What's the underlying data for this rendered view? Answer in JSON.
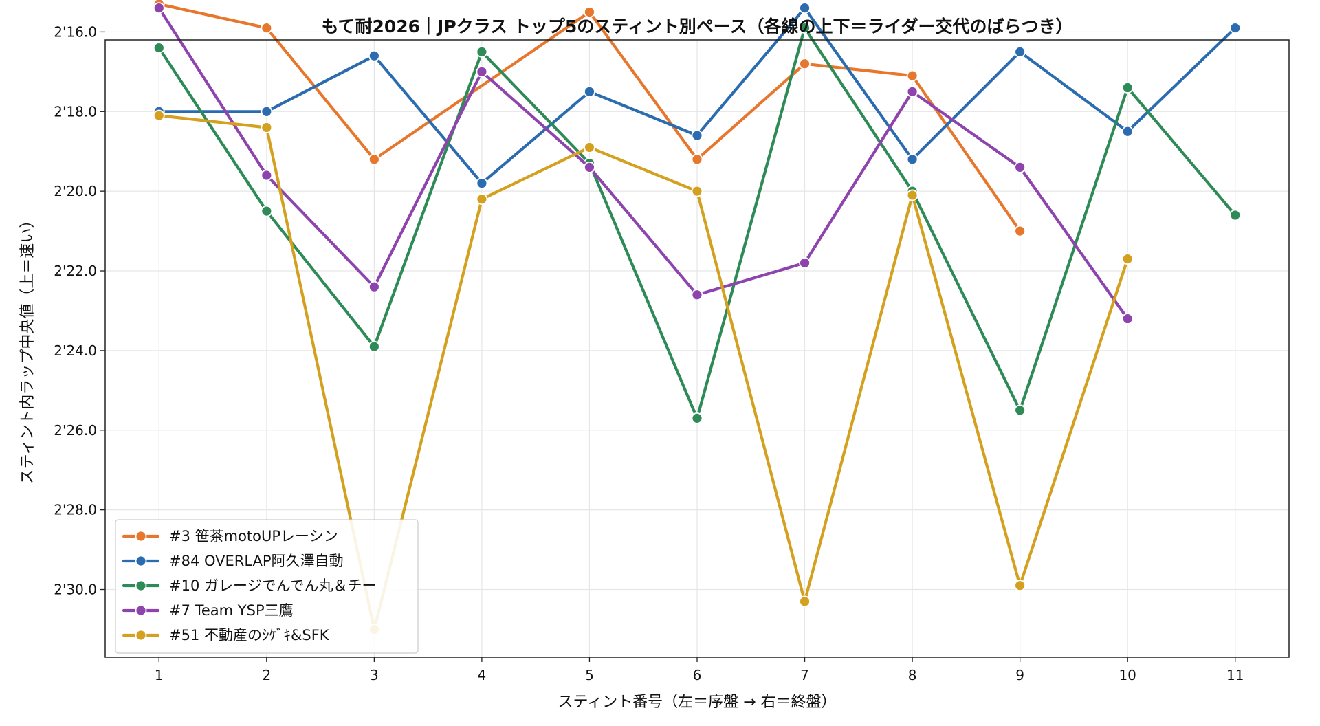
{
  "chart_data": {
    "type": "line",
    "title": "もて耐2026｜JPクラス トップ5のスティント別ペース（各線の上下＝ライダー交代のばらつき）",
    "xlabel": "スティント番号（左＝序盤 → 右＝終盤）",
    "ylabel": "スティント内ラップ中央値（上＝速い）",
    "x": [
      1,
      2,
      3,
      4,
      5,
      6,
      7,
      8,
      9,
      10,
      11
    ],
    "xlim": [
      0.5,
      11.5
    ],
    "ylim_seconds": [
      136.2,
      151.7
    ],
    "y_inverted": true,
    "y_ticks": [
      {
        "value": 136,
        "label": "2'16.0"
      },
      {
        "value": 138,
        "label": "2'18.0"
      },
      {
        "value": 140,
        "label": "2'20.0"
      },
      {
        "value": 142,
        "label": "2'22.0"
      },
      {
        "value": 144,
        "label": "2'24.0"
      },
      {
        "value": 146,
        "label": "2'26.0"
      },
      {
        "value": 148,
        "label": "2'28.0"
      },
      {
        "value": 150,
        "label": "2'30.0"
      }
    ],
    "grid": true,
    "legend_position": "bottom-left",
    "series": [
      {
        "name": "#3 笹茶motoUPレーシン",
        "color": "#e8772e",
        "values": [
          135.3,
          135.9,
          139.2,
          null,
          135.5,
          139.2,
          136.8,
          137.1,
          141.0,
          null,
          null
        ]
      },
      {
        "name": "#84 OVERLAP阿久澤自動",
        "color": "#2b6cb0",
        "values": [
          138.0,
          138.0,
          136.6,
          139.8,
          137.5,
          138.6,
          135.4,
          139.2,
          136.5,
          138.5,
          135.9
        ]
      },
      {
        "name": "#10 ガレージでんでん丸＆チー",
        "color": "#2e8b57",
        "values": [
          136.4,
          140.5,
          143.9,
          136.5,
          139.3,
          145.7,
          135.9,
          140.0,
          145.5,
          137.4,
          140.6
        ]
      },
      {
        "name": "#7 Team YSP三鷹",
        "color": "#8e44ad",
        "values": [
          135.4,
          139.6,
          142.4,
          137.0,
          139.4,
          142.6,
          141.8,
          137.5,
          139.4,
          143.2,
          null
        ]
      },
      {
        "name": "#51 不動産のｼｹﾞｷ&SFK",
        "color": "#d4a020",
        "values": [
          138.1,
          138.4,
          151.0,
          140.2,
          138.9,
          140.0,
          150.3,
          140.1,
          149.9,
          141.7,
          null
        ]
      }
    ]
  }
}
